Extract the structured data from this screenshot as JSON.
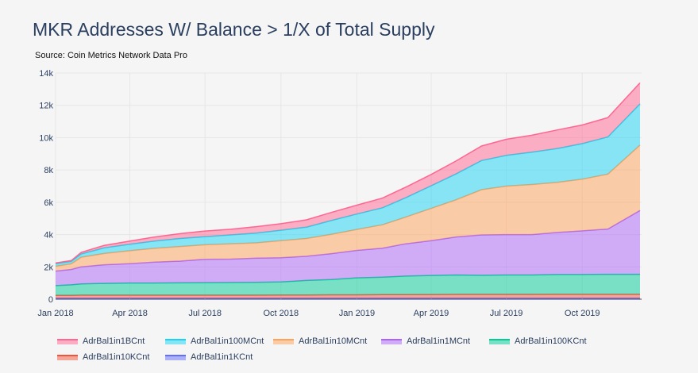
{
  "chart_data": {
    "type": "area",
    "stacked": true,
    "title": "MKR Addresses W/ Balance > 1/X of Total Supply",
    "subtitle": "Source: Coin Metrics Network Data Pro",
    "xlabel": "",
    "ylabel": "",
    "x_tick_labels": [
      "Jan 2018",
      "Apr 2018",
      "Jul 2018",
      "Oct 2018",
      "Jan 2019",
      "Apr 2019",
      "Jul 2019",
      "Oct 2019"
    ],
    "y_tick_labels": [
      "0",
      "2k",
      "4k",
      "6k",
      "8k",
      "10k",
      "12k",
      "14k"
    ],
    "ylim": [
      0,
      14000
    ],
    "x": [
      "2018-01-01",
      "2018-01-20",
      "2018-02-01",
      "2018-03-01",
      "2018-04-01",
      "2018-05-01",
      "2018-06-01",
      "2018-07-01",
      "2018-08-01",
      "2018-09-01",
      "2018-10-01",
      "2018-11-01",
      "2018-12-01",
      "2019-01-01",
      "2019-02-01",
      "2019-03-01",
      "2019-04-01",
      "2019-05-01",
      "2019-06-01",
      "2019-07-01",
      "2019-08-01",
      "2019-09-01",
      "2019-10-01",
      "2019-11-01",
      "2019-12-10"
    ],
    "grid": true,
    "legend_position": "bottom",
    "series": [
      {
        "name": "AdrBal1in1KCnt",
        "color": "#636efa",
        "values": [
          60,
          60,
          60,
          60,
          60,
          60,
          60,
          60,
          60,
          60,
          60,
          60,
          60,
          60,
          60,
          60,
          60,
          60,
          60,
          60,
          60,
          60,
          60,
          60,
          60
        ]
      },
      {
        "name": "AdrBal1in10KCnt",
        "color": "#ef553b",
        "values": [
          180,
          180,
          190,
          190,
          190,
          190,
          190,
          190,
          190,
          190,
          200,
          200,
          210,
          210,
          220,
          220,
          230,
          240,
          240,
          240,
          240,
          250,
          250,
          250,
          250
        ]
      },
      {
        "name": "AdrBal1in100KCnt",
        "color": "#00cc96",
        "values": [
          600,
          650,
          700,
          730,
          750,
          750,
          760,
          770,
          780,
          790,
          810,
          900,
          950,
          1050,
          1080,
          1150,
          1180,
          1200,
          1180,
          1200,
          1200,
          1220,
          1220,
          1230,
          1230
        ]
      },
      {
        "name": "AdrBal1in1MCnt",
        "color": "#ab63fa",
        "values": [
          900,
          950,
          1050,
          1150,
          1200,
          1300,
          1350,
          1450,
          1450,
          1500,
          1500,
          1500,
          1600,
          1700,
          1800,
          2000,
          2150,
          2350,
          2500,
          2500,
          2500,
          2600,
          2700,
          2800,
          3950
        ]
      },
      {
        "name": "AdrBal1in10MCnt",
        "color": "#ffa15a",
        "values": [
          300,
          350,
          600,
          700,
          800,
          850,
          900,
          900,
          950,
          950,
          1050,
          1100,
          1200,
          1300,
          1450,
          1650,
          2000,
          2300,
          2800,
          3000,
          3100,
          3100,
          3200,
          3400,
          4050
        ]
      },
      {
        "name": "AdrBal1in100MCnt",
        "color": "#19d3f3",
        "values": [
          150,
          150,
          200,
          350,
          400,
          450,
          500,
          500,
          550,
          600,
          650,
          700,
          850,
          950,
          1050,
          1200,
          1400,
          1600,
          1800,
          1900,
          2000,
          2100,
          2200,
          2300,
          2550
        ]
      },
      {
        "name": "AdrBal1in1BCnt",
        "color": "#ff6692",
        "values": [
          50,
          50,
          100,
          150,
          200,
          250,
          300,
          350,
          350,
          400,
          400,
          450,
          500,
          550,
          600,
          650,
          700,
          800,
          900,
          1000,
          1050,
          1150,
          1150,
          1200,
          1300
        ]
      }
    ]
  }
}
